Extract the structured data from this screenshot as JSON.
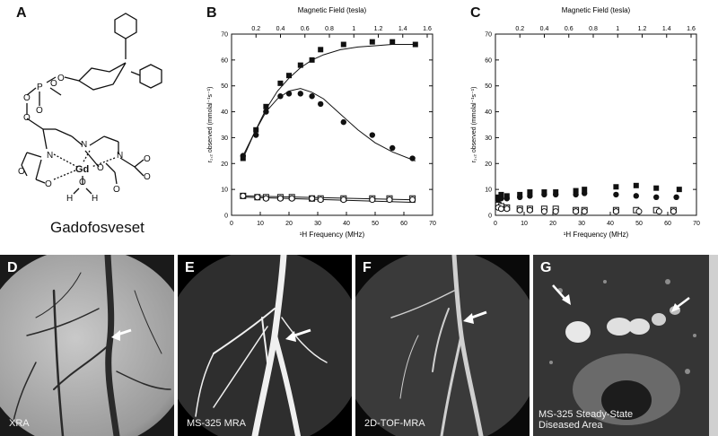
{
  "panels": {
    "a": {
      "letter": "A",
      "compound_name": "Gadofosveset",
      "atoms": {
        "O": "O",
        "P": "P",
        "N": "N",
        "Gd": "Gd",
        "H": "H"
      }
    },
    "b": {
      "letter": "B"
    },
    "c": {
      "letter": "C"
    },
    "d": {
      "letter": "D",
      "caption": "XRA"
    },
    "e": {
      "letter": "E",
      "caption": "MS-325 MRA"
    },
    "f": {
      "letter": "F",
      "caption": "2D-TOF-MRA"
    },
    "g": {
      "letter": "G",
      "caption_line1": "MS-325 Steady-State",
      "caption_line2": "Diseased Area"
    }
  },
  "chart_data": [
    {
      "panel": "B",
      "type": "scatter",
      "title": "",
      "xlabel": "¹H Frequency (MHz)",
      "ylabel": "r₁,₂ observed (mmolal⁻¹s⁻¹)",
      "top_axis_label": "Magnetic Field (tesla)",
      "xlim": [
        0,
        70
      ],
      "ylim": [
        0,
        70
      ],
      "xticks": [
        0,
        10,
        20,
        30,
        40,
        50,
        60,
        70
      ],
      "yticks": [
        0,
        10,
        20,
        30,
        40,
        50,
        60,
        70
      ],
      "top_ticks": [
        "0.2",
        "0.4",
        "0.6",
        "0.8",
        "1",
        "1.2",
        "1.4",
        "1.6"
      ],
      "series": [
        {
          "marker": "filled-square",
          "x": [
            4,
            8.5,
            12,
            17,
            20,
            24,
            28,
            31,
            39,
            49,
            56,
            64
          ],
          "y": [
            22,
            33,
            42,
            51,
            54,
            58,
            60,
            64,
            66,
            67,
            67,
            66
          ]
        },
        {
          "marker": "filled-circle",
          "x": [
            4,
            8.5,
            12,
            17,
            20,
            24,
            28,
            31,
            39,
            49,
            56,
            63
          ],
          "y": [
            23,
            31,
            40,
            46,
            47,
            47,
            46,
            43,
            36,
            31,
            26,
            22
          ]
        },
        {
          "marker": "open-square",
          "x": [
            4,
            9,
            12,
            17,
            21,
            28,
            31,
            39,
            49,
            55,
            63
          ],
          "y": [
            7.5,
            7,
            7,
            7,
            7,
            6.5,
            6.5,
            6.5,
            6.5,
            6.5,
            6.5
          ]
        },
        {
          "marker": "open-circle",
          "x": [
            4,
            9,
            12,
            17,
            21,
            28,
            31,
            39,
            49,
            55,
            63
          ],
          "y": [
            7.5,
            7,
            6.5,
            6.5,
            6.5,
            6.5,
            6,
            6,
            6,
            6,
            6
          ]
        }
      ],
      "fits": [
        {
          "x": [
            4,
            8,
            12,
            16,
            20,
            24,
            28,
            32,
            38,
            44,
            50,
            56,
            64
          ],
          "y": [
            22,
            32,
            41,
            48,
            53,
            57,
            60,
            62,
            64,
            65,
            65.5,
            66,
            66
          ]
        },
        {
          "x": [
            4,
            8,
            12,
            16,
            20,
            24,
            28,
            32,
            38,
            44,
            50,
            56,
            64
          ],
          "y": [
            23,
            32,
            40,
            45,
            48,
            49,
            47.5,
            45,
            39,
            33,
            28,
            24.5,
            21
          ]
        },
        {
          "x": [
            4,
            64
          ],
          "y": [
            7.5,
            6
          ]
        },
        {
          "x": [
            4,
            64
          ],
          "y": [
            7,
            5
          ]
        }
      ]
    },
    {
      "panel": "C",
      "type": "scatter",
      "title": "",
      "xlabel": "¹H Frequency (MHz)",
      "ylabel": "r₁,₂ observed (mmolal⁻¹s⁻¹)",
      "top_axis_label": "Magnetic Field (tesla)",
      "xlim": [
        0,
        70
      ],
      "ylim": [
        0,
        70
      ],
      "xticks": [
        0,
        10,
        20,
        30,
        40,
        50,
        60,
        70
      ],
      "yticks": [
        0,
        10,
        20,
        30,
        40,
        50,
        60,
        70
      ],
      "top_ticks": [
        "0.2",
        "0.4",
        "0.6",
        "0.8",
        "1",
        "1.2",
        "1.4",
        "1.6"
      ],
      "series": [
        {
          "marker": "filled-square",
          "x": [
            1,
            2,
            4,
            8.5,
            12,
            17,
            21,
            28,
            31,
            42,
            49,
            56,
            64
          ],
          "y": [
            7,
            8,
            7.5,
            8,
            9,
            9,
            9,
            9.5,
            10,
            11,
            11.5,
            10.5,
            10
          ]
        },
        {
          "marker": "filled-circle",
          "x": [
            1,
            2,
            4,
            8.5,
            12,
            17,
            21,
            28,
            31,
            42,
            49,
            56,
            63
          ],
          "y": [
            6,
            6.5,
            6.5,
            7,
            7.5,
            8,
            8,
            8,
            8.5,
            8,
            7.5,
            7,
            7
          ]
        },
        {
          "marker": "open-square",
          "x": [
            1,
            2,
            4,
            8.5,
            12,
            17,
            21,
            28,
            31,
            42,
            49,
            56,
            62
          ],
          "y": [
            4,
            3.5,
            3,
            2.5,
            2.5,
            2.5,
            2.5,
            2,
            2,
            2,
            2,
            2,
            2
          ]
        },
        {
          "marker": "open-circle",
          "x": [
            1,
            2,
            4,
            8.5,
            12,
            17,
            21,
            28,
            31,
            42,
            50,
            57,
            62
          ],
          "y": [
            3,
            2.5,
            2.5,
            2,
            2,
            1.5,
            1.5,
            1.5,
            1.5,
            1.5,
            1.5,
            1.5,
            1.5
          ]
        }
      ]
    }
  ]
}
